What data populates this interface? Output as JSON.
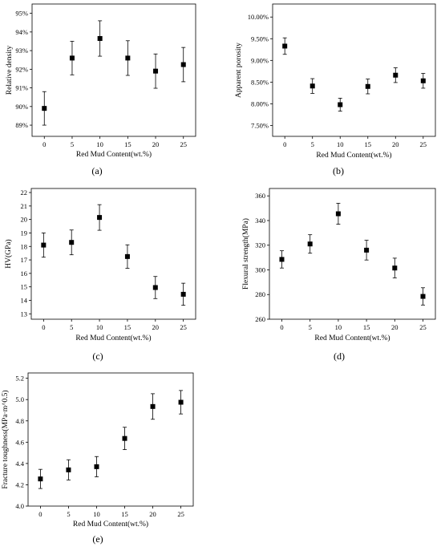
{
  "chart_data": [
    {
      "type": "scatter",
      "panel_label": "(a)",
      "xlabel": "Red Mud Content(wt.%)",
      "ylabel": "Relative density",
      "x": [
        0,
        5,
        10,
        15,
        20,
        25
      ],
      "y": [
        89.9,
        92.6,
        93.65,
        92.6,
        91.9,
        92.25
      ],
      "error": [
        0.9,
        0.9,
        0.95,
        0.93,
        0.92,
        0.92
      ],
      "xticks": [
        0,
        5,
        10,
        15,
        20,
        25
      ],
      "yticks": [
        89,
        90,
        91,
        92,
        93,
        94,
        95
      ],
      "ytick_labels": [
        "89%",
        "90%",
        "91%",
        "92%",
        "93%",
        "94%",
        "95%"
      ],
      "xlim": [
        -2.2,
        27.2
      ],
      "ylim": [
        88.4,
        95.5
      ],
      "grid": false,
      "marker": "square"
    },
    {
      "type": "scatter",
      "panel_label": "(b)",
      "xlabel": "Red Mud Content(wt.%)",
      "ylabel": "Apparent porosity",
      "x": [
        0,
        5,
        10,
        15,
        20,
        25
      ],
      "y": [
        9.33,
        8.41,
        7.98,
        8.4,
        8.66,
        8.53
      ],
      "error": [
        0.19,
        0.17,
        0.15,
        0.17,
        0.17,
        0.17
      ],
      "xticks": [
        0,
        5,
        10,
        15,
        20,
        25
      ],
      "yticks": [
        7.5,
        8.0,
        8.5,
        9.0,
        9.5,
        10.0
      ],
      "ytick_labels": [
        "7.50%",
        "8.00%",
        "8.50%",
        "9.00%",
        "9.50%",
        "10.00%"
      ],
      "xlim": [
        -2.2,
        27.2
      ],
      "ylim": [
        7.25,
        10.3
      ],
      "grid": false,
      "marker": "square"
    },
    {
      "type": "scatter",
      "panel_label": "(c)",
      "xlabel": "Red Mud Content(wt.%)",
      "ylabel": "HV(GPa)",
      "x": [
        0,
        5,
        10,
        15,
        20,
        25
      ],
      "y": [
        18.1,
        18.3,
        20.15,
        17.25,
        14.95,
        14.45
      ],
      "error": [
        0.9,
        0.92,
        0.95,
        0.87,
        0.82,
        0.82
      ],
      "xticks": [
        0,
        5,
        10,
        15,
        20,
        25
      ],
      "yticks": [
        13,
        14,
        15,
        16,
        17,
        18,
        19,
        20,
        21,
        22
      ],
      "ytick_labels": [
        "13",
        "14",
        "15",
        "16",
        "17",
        "18",
        "19",
        "20",
        "21",
        "22"
      ],
      "xlim": [
        -2.2,
        27.2
      ],
      "ylim": [
        12.6,
        22.3
      ],
      "grid": false,
      "marker": "square"
    },
    {
      "type": "scatter",
      "panel_label": "(d)",
      "xlabel": "Red Mud Content(wt.%)",
      "ylabel": "Flexural strength(MPa)",
      "x": [
        0,
        5,
        10,
        15,
        20,
        25
      ],
      "y": [
        308.5,
        321,
        345.5,
        316,
        301.5,
        278.5
      ],
      "error": [
        7,
        7.5,
        8.5,
        8,
        8,
        7
      ],
      "xticks": [
        0,
        5,
        10,
        15,
        20,
        25
      ],
      "yticks": [
        260,
        280,
        300,
        320,
        340,
        360
      ],
      "ytick_labels": [
        "260",
        "280",
        "300",
        "320",
        "340",
        "360"
      ],
      "xlim": [
        -2.2,
        27.2
      ],
      "ylim": [
        260,
        366
      ],
      "grid": false,
      "marker": "square"
    },
    {
      "type": "scatter",
      "panel_label": "(e)",
      "xlabel": "Red Mud Content(wt.%)",
      "ylabel": "Fracture toughness(MPa·m^0.5)",
      "x": [
        0,
        5,
        10,
        15,
        20,
        25
      ],
      "y": [
        4.255,
        4.34,
        4.37,
        4.635,
        4.935,
        4.975
      ],
      "error": [
        0.09,
        0.095,
        0.095,
        0.105,
        0.12,
        0.11
      ],
      "xticks": [
        0,
        5,
        10,
        15,
        20,
        25
      ],
      "yticks": [
        4.0,
        4.2,
        4.4,
        4.6,
        4.8,
        5.0,
        5.2
      ],
      "ytick_labels": [
        "4.0",
        "4.2",
        "4.4",
        "4.6",
        "4.8",
        "5.0",
        "5.2"
      ],
      "xlim": [
        -2.2,
        27.2
      ],
      "ylim": [
        4.0,
        5.25
      ],
      "grid": false,
      "marker": "square"
    }
  ]
}
